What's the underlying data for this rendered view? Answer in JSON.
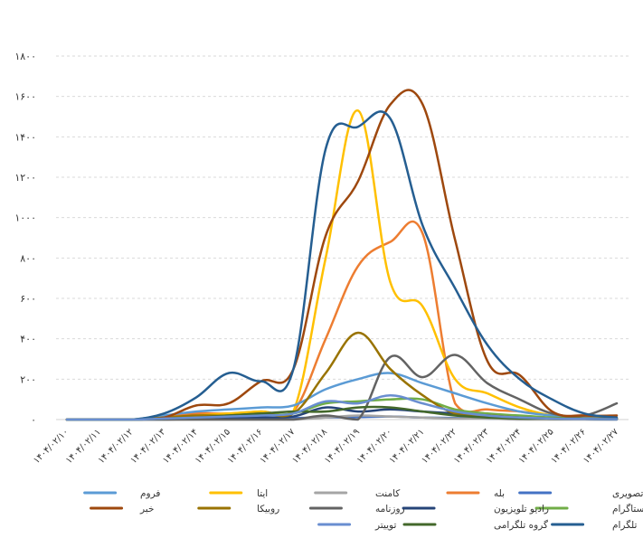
{
  "chart_data": {
    "type": "line",
    "ylim": [
      0,
      1800
    ],
    "y_ticks": [
      "۰",
      "۲۰۰",
      "۴۰۰",
      "۶۰۰",
      "۸۰۰",
      "۱۰۰۰",
      "۱۲۰۰",
      "۱۴۰۰",
      "۱۶۰۰",
      "۱۸۰۰"
    ],
    "grid": "horizontal-dashed",
    "legend_position": "bottom",
    "categories": [
      "۱۴۰۴/۰۲/۱۰",
      "۱۴۰۴/۰۲/۱۱",
      "۱۴۰۴/۰۲/۱۲",
      "۱۴۰۴/۰۲/۱۳",
      "۱۴۰۴/۰۲/۱۴",
      "۱۴۰۴/۰۲/۱۵",
      "۱۴۰۴/۰۲/۱۶",
      "۱۴۰۴/۰۲/۱۷",
      "۱۴۰۴/۰۲/۱۸",
      "۱۴۰۴/۰۲/۱۹",
      "۱۴۰۴/۰۲/۲۰",
      "۱۴۰۴/۰۲/۲۱",
      "۱۴۰۴/۰۲/۲۲",
      "۱۴۰۴/۰۲/۲۳",
      "۱۴۰۴/۰۲/۲۴",
      "۱۴۰۴/۰۲/۲۵",
      "۱۴۰۴/۰۲/۲۶",
      "۱۴۰۴/۰۲/۲۷"
    ],
    "series": [
      {
        "name": "رسانه تصویری",
        "color": "#4472c4",
        "values": [
          0,
          0,
          0,
          0,
          3,
          5,
          5,
          8,
          10,
          12,
          15,
          10,
          8,
          5,
          3,
          2,
          1,
          0
        ]
      },
      {
        "name": "بله",
        "color": "#ed7d31",
        "values": [
          0,
          0,
          0,
          10,
          30,
          30,
          40,
          40,
          400,
          760,
          880,
          920,
          80,
          50,
          40,
          20,
          10,
          5
        ]
      },
      {
        "name": "کامنت",
        "color": "#a5a5a5",
        "values": [
          0,
          0,
          0,
          0,
          0,
          0,
          0,
          0,
          10,
          20,
          15,
          10,
          5,
          5,
          0,
          0,
          0,
          0
        ]
      },
      {
        "name": "ایتا",
        "color": "#ffc000",
        "values": [
          0,
          0,
          0,
          10,
          20,
          30,
          40,
          40,
          800,
          1530,
          680,
          560,
          200,
          130,
          60,
          20,
          10,
          5
        ]
      },
      {
        "name": "فروم",
        "color": "#5b9bd5",
        "values": [
          0,
          0,
          0,
          20,
          40,
          50,
          60,
          70,
          150,
          200,
          230,
          180,
          130,
          80,
          40,
          20,
          10,
          5
        ]
      },
      {
        "name": "اینستاگرام",
        "color": "#70ad47",
        "values": [
          0,
          0,
          0,
          5,
          10,
          20,
          25,
          30,
          80,
          90,
          100,
          100,
          50,
          30,
          20,
          10,
          5,
          5
        ]
      },
      {
        "name": "رادیو تلویزیون",
        "color": "#264478",
        "values": [
          0,
          0,
          0,
          3,
          5,
          8,
          10,
          15,
          60,
          40,
          50,
          40,
          30,
          20,
          10,
          5,
          3,
          2
        ]
      },
      {
        "name": "روزنامه",
        "color": "#636363",
        "values": [
          0,
          0,
          0,
          0,
          0,
          0,
          0,
          0,
          20,
          0,
          310,
          210,
          320,
          180,
          100,
          30,
          20,
          80
        ]
      },
      {
        "name": "روبیکا",
        "color": "#997300",
        "values": [
          0,
          0,
          0,
          10,
          20,
          20,
          30,
          30,
          230,
          430,
          250,
          120,
          30,
          20,
          10,
          5,
          5,
          5
        ]
      },
      {
        "name": "خبر",
        "color": "#9e480e",
        "values": [
          0,
          0,
          0,
          10,
          70,
          80,
          190,
          250,
          910,
          1180,
          1560,
          1560,
          890,
          290,
          220,
          40,
          20,
          20
        ]
      },
      {
        "name": "تلگرام",
        "color": "#255e91",
        "values": [
          0,
          0,
          0,
          30,
          110,
          230,
          190,
          250,
          1340,
          1450,
          1490,
          960,
          650,
          370,
          200,
          100,
          30,
          10
        ]
      },
      {
        "name": "گروه تلگرامی",
        "color": "#43682b",
        "values": [
          0,
          0,
          0,
          5,
          10,
          20,
          30,
          40,
          40,
          60,
          60,
          40,
          20,
          10,
          5,
          5,
          3,
          2
        ]
      },
      {
        "name": "توییتر",
        "color": "#698ed0",
        "values": [
          0,
          0,
          0,
          5,
          10,
          15,
          20,
          30,
          90,
          80,
          120,
          80,
          40,
          20,
          10,
          5,
          3,
          2
        ]
      }
    ]
  }
}
